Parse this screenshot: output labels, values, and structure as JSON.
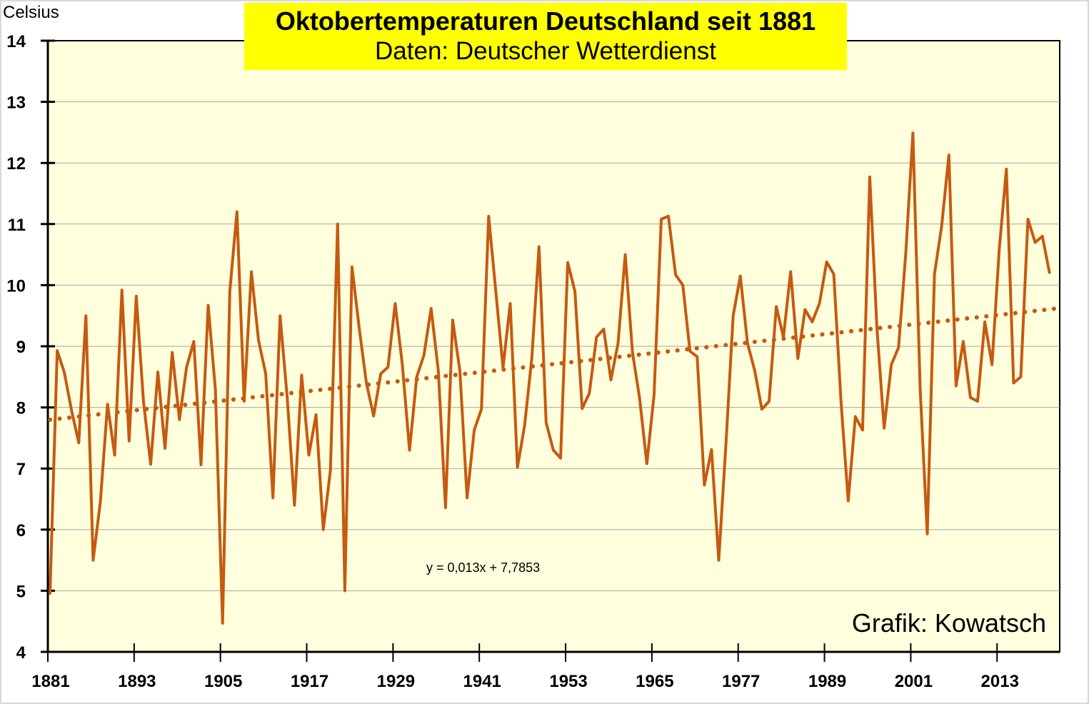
{
  "chart_data": {
    "type": "line",
    "title": "Oktobertemperaturen Deutschland seit 1881",
    "subtitle": "Daten: Deutscher Wetterdienst",
    "ylabel": "Celsius",
    "xlabel": "",
    "credit": "Grafik: Kowatsch",
    "trendline_label": "y = 0,013x + 7,7853",
    "trendline": {
      "slope": 0.013,
      "intercept": 7.7853,
      "style": "dotted"
    },
    "ylim": [
      4,
      14
    ],
    "yticks": [
      "4",
      "5",
      "6",
      "7",
      "8",
      "9",
      "10",
      "11",
      "12",
      "13",
      "14"
    ],
    "xticks": [
      "1881",
      "1893",
      "1905",
      "1917",
      "1929",
      "1941",
      "1953",
      "1965",
      "1977",
      "1989",
      "2001",
      "2013"
    ],
    "grid": true,
    "x_start": 1881,
    "colors": {
      "line": "#c55a11",
      "plot_bg": "#ffffdd",
      "title_bg": "#ffff00"
    },
    "series": [
      {
        "name": "Oktober",
        "values": [
          4.95,
          8.93,
          8.57,
          7.95,
          7.42,
          9.5,
          5.5,
          6.45,
          8.05,
          7.22,
          9.92,
          7.45,
          9.82,
          8.1,
          7.07,
          8.58,
          7.33,
          8.9,
          7.8,
          8.66,
          9.08,
          7.06,
          9.67,
          8.3,
          4.47,
          9.9,
          11.2,
          8.1,
          10.22,
          9.1,
          8.55,
          6.52,
          9.5,
          8.15,
          6.4,
          8.53,
          7.22,
          7.88,
          6.0,
          6.97,
          11.0,
          5.0,
          10.3,
          9.3,
          8.4,
          7.86,
          8.55,
          8.66,
          9.7,
          8.7,
          7.3,
          8.5,
          8.85,
          9.62,
          8.6,
          6.36,
          9.43,
          8.6,
          6.52,
          7.63,
          7.97,
          11.13,
          9.9,
          8.65,
          9.7,
          7.02,
          7.7,
          8.8,
          10.63,
          7.75,
          7.3,
          7.17,
          10.37,
          9.9,
          7.98,
          8.23,
          9.15,
          9.28,
          8.45,
          9.05,
          10.5,
          8.9,
          8.15,
          7.08,
          8.2,
          11.08,
          11.13,
          10.17,
          10.0,
          8.92,
          8.83,
          6.73,
          7.31,
          5.5,
          7.4,
          9.5,
          10.15,
          9.05,
          8.6,
          7.97,
          8.1,
          9.65,
          9.15,
          10.22,
          8.8,
          9.6,
          9.4,
          9.7,
          10.38,
          10.18,
          8.1,
          6.47,
          7.85,
          7.63,
          11.77,
          9.3,
          7.66,
          8.7,
          8.98,
          10.5,
          12.49,
          8.32,
          5.93,
          10.18,
          10.97,
          12.13,
          8.35,
          9.08,
          8.16,
          8.1,
          9.4,
          8.7,
          10.57,
          11.9,
          8.4,
          8.5,
          11.08,
          10.7,
          10.8,
          10.2
        ]
      }
    ]
  }
}
